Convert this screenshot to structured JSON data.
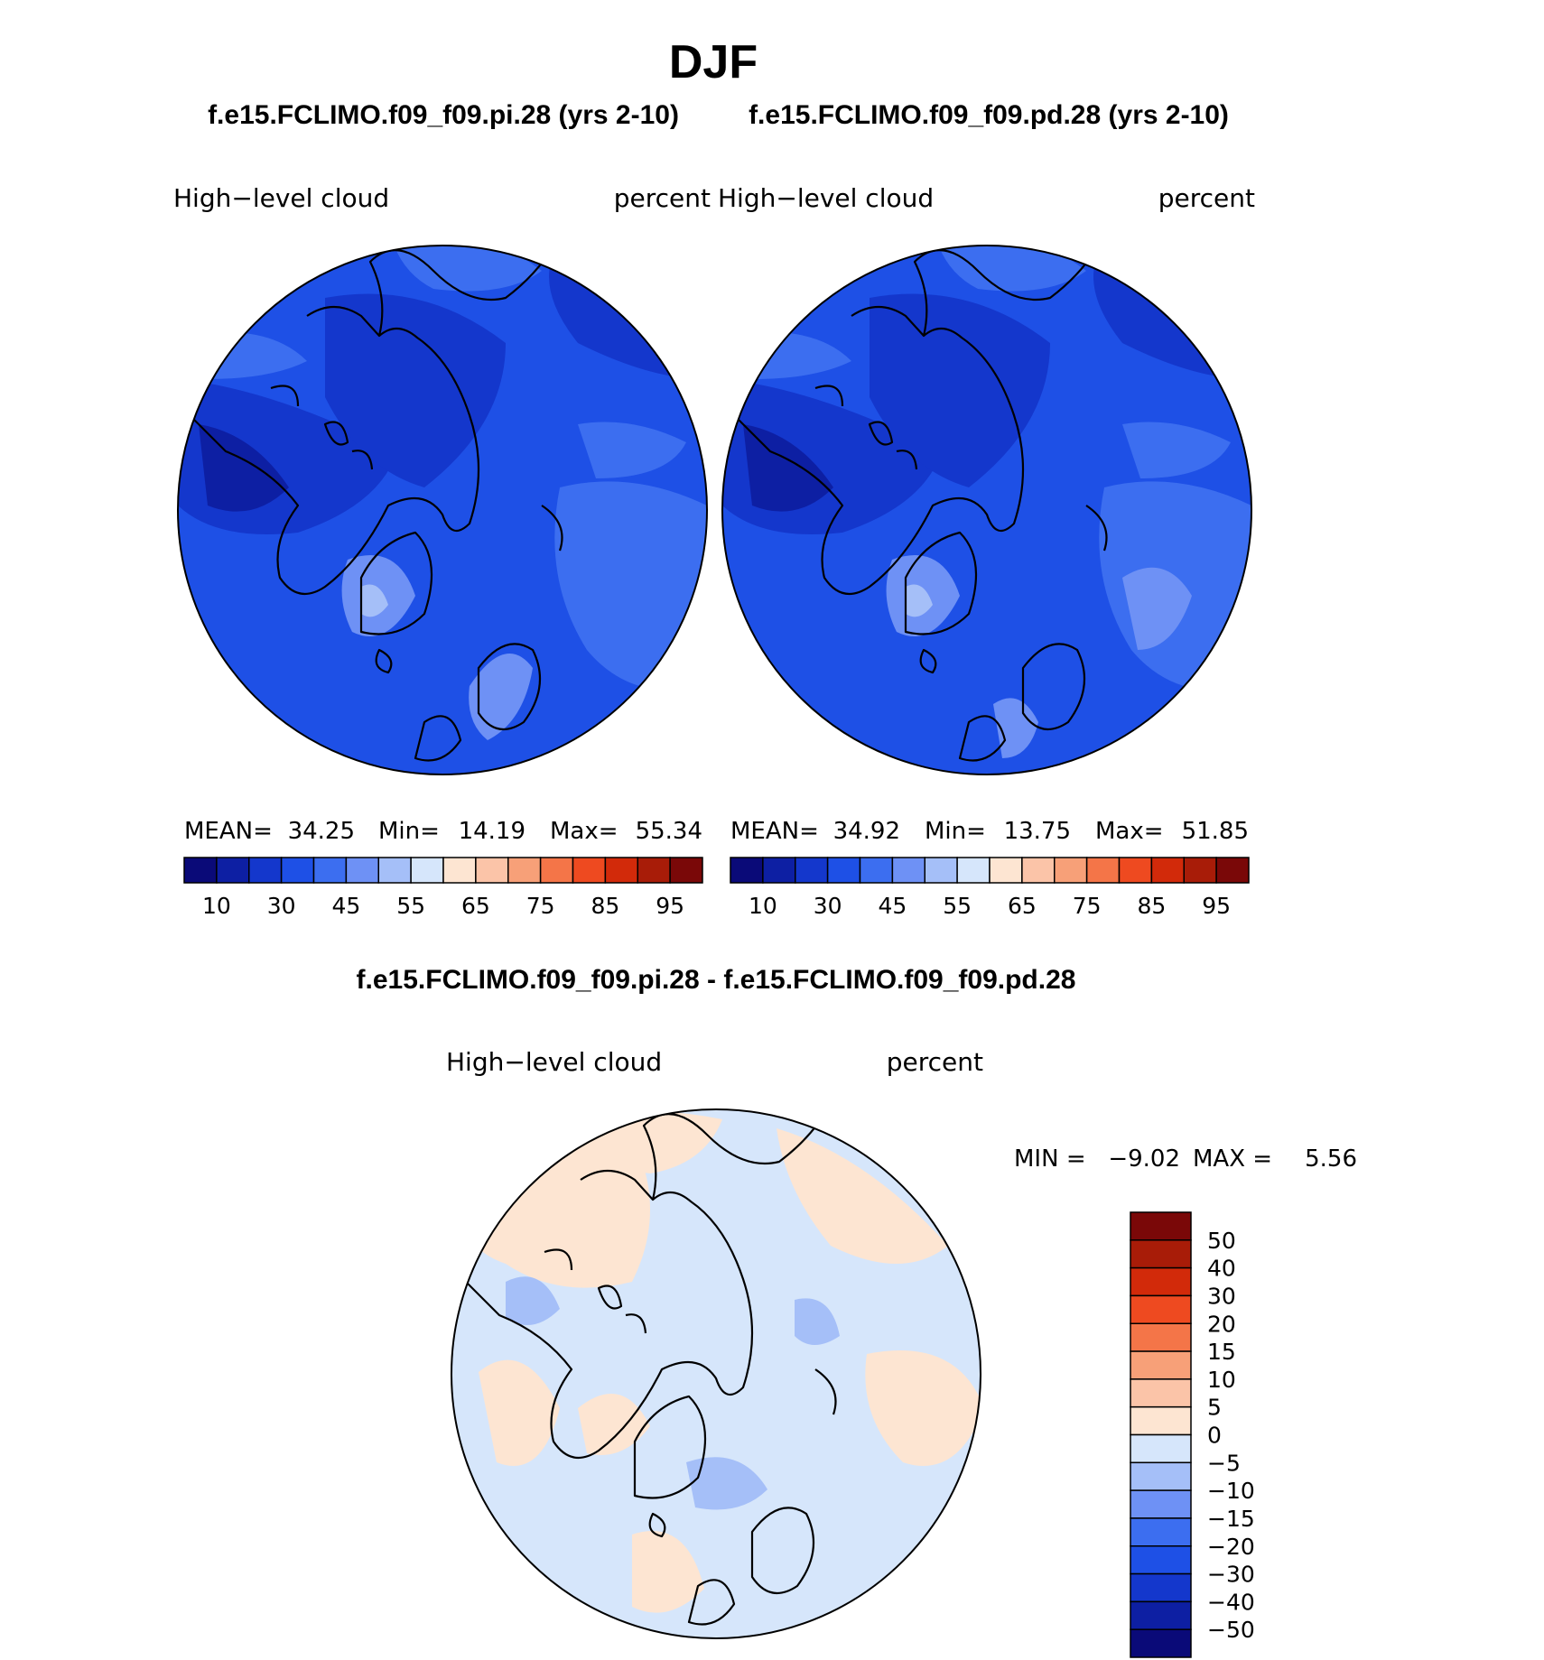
{
  "title": "DJF",
  "panel_titles": {
    "left": "f.e15.FCLIMO.f09_f09.pi.28 (yrs 2-10)",
    "right": "f.e15.FCLIMO.f09_f09.pd.28 (yrs 2-10)",
    "diff": "f.e15.FCLIMO.f09_f09.pi.28 - f.e15.FCLIMO.f09_f09.pd.28"
  },
  "chart_data": [
    {
      "type": "heatmap",
      "variable": "High−level  cloud",
      "units": "percent",
      "stats": {
        "mean_label": "MEAN=",
        "mean": "34.25",
        "min_label": "Min=",
        "min": "14.19",
        "max_label": "Max=",
        "max": "55.34"
      },
      "colorbar": {
        "colors": [
          "#0a0a78",
          "#0d1fa3",
          "#1437cc",
          "#1e50e6",
          "#3c6ef0",
          "#6e91f5",
          "#a5bff8",
          "#d6e6fb",
          "#fde5d2",
          "#fbc4a8",
          "#f7a078",
          "#f47548",
          "#ee4a20",
          "#d22a0a",
          "#a81c08",
          "#7a0808"
        ],
        "tick_labels": [
          "10",
          "30",
          "45",
          "55",
          "65",
          "75",
          "85",
          "95"
        ]
      }
    },
    {
      "type": "heatmap",
      "variable": "High−level  cloud",
      "units": "percent",
      "stats": {
        "mean_label": "MEAN=",
        "mean": "34.92",
        "min_label": "Min=",
        "min": "13.75",
        "max_label": "Max=",
        "max": "51.85"
      },
      "colorbar": {
        "colors": [
          "#0a0a78",
          "#0d1fa3",
          "#1437cc",
          "#1e50e6",
          "#3c6ef0",
          "#6e91f5",
          "#a5bff8",
          "#d6e6fb",
          "#fde5d2",
          "#fbc4a8",
          "#f7a078",
          "#f47548",
          "#ee4a20",
          "#d22a0a",
          "#a81c08",
          "#7a0808"
        ],
        "tick_labels": [
          "10",
          "30",
          "45",
          "55",
          "65",
          "75",
          "85",
          "95"
        ]
      }
    },
    {
      "type": "heatmap",
      "variable": "High−level  cloud",
      "units": "percent",
      "stats": {
        "min_label": "MIN =",
        "min": "−9.02",
        "max_label": "MAX =",
        "max": "5.56"
      },
      "colorbar": {
        "colors": [
          "#7a0808",
          "#a81c08",
          "#d22a0a",
          "#ee4a20",
          "#f47548",
          "#f7a078",
          "#fbc4a8",
          "#fde5d2",
          "#d6e6fb",
          "#a5bff8",
          "#6e91f5",
          "#3c6ef0",
          "#1e50e6",
          "#1437cc",
          "#0d1fa3",
          "#0a0a78"
        ],
        "tick_labels": [
          "50",
          "40",
          "30",
          "20",
          "15",
          "10",
          "5",
          "0",
          "−5",
          "−10",
          "−15",
          "−20",
          "−30",
          "−40",
          "−50"
        ]
      }
    }
  ]
}
